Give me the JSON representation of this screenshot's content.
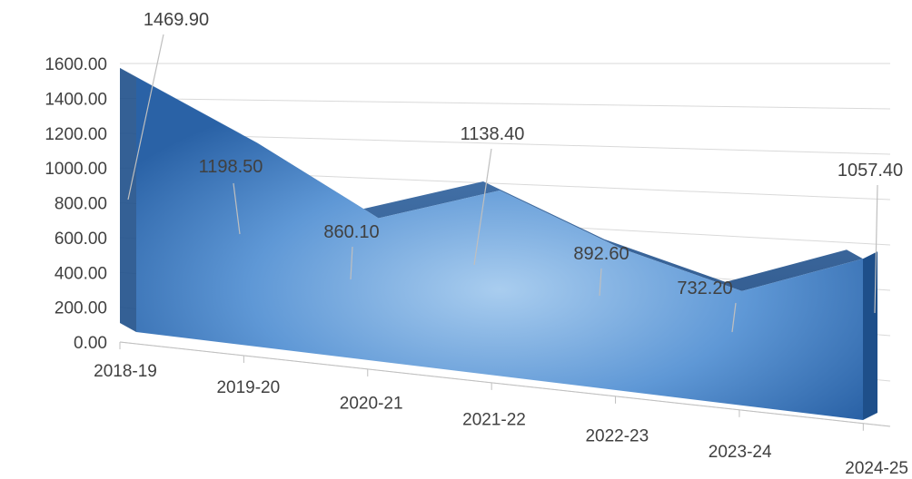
{
  "chart_data": {
    "type": "area",
    "style": "3d-area",
    "categories": [
      "2018-19",
      "2019-20",
      "2020-21",
      "2021-22",
      "2022-23",
      "2023-24",
      "2024-25"
    ],
    "series": [
      {
        "values": [
          1469.9,
          1198.5,
          860.1,
          1138.4,
          892.6,
          732.2,
          1057.4
        ]
      }
    ],
    "data_labels": [
      "1469.90",
      "1198.50",
      "860.10",
      "1138.40",
      "892.60",
      "732.20",
      "1057.40"
    ],
    "y_ticks": [
      "0.00",
      "200.00",
      "400.00",
      "600.00",
      "800.00",
      "1000.00",
      "1200.00",
      "1400.00",
      "1600.00"
    ],
    "ylim": [
      0,
      1600
    ],
    "title": "",
    "xlabel": "",
    "ylabel": "",
    "grid": true,
    "legend": "none",
    "colors": {
      "area": "#2f6db5",
      "area_light": "#a9cdef",
      "area_dark": "#1e4f8a",
      "gridline": "#d9d9d9",
      "leader": "#bfbfbf"
    }
  }
}
